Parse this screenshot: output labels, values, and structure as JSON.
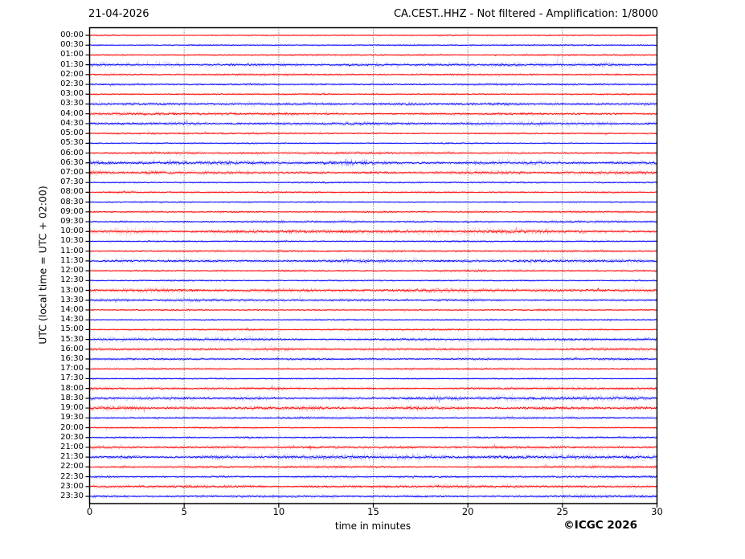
{
  "header": {
    "date": "21-04-2026",
    "title": "CA.CEST..HHZ - Not filtered - Amplification: 1/8000"
  },
  "footer": {
    "copyright": "©ICGC 2026"
  },
  "chart_data": {
    "type": "line",
    "subtype": "helicorder-seismogram",
    "title": "CA.CEST..HHZ - Not filtered - Amplification: 1/8000",
    "date": "21-04-2026",
    "station": "CA.CEST..HHZ",
    "filter": "Not filtered",
    "amplification": "1/8000",
    "xlabel": "time in minutes",
    "ylabel": "UTC (local time = UTC + 02:00)",
    "xlim": [
      0,
      30
    ],
    "x_ticks": [
      "0",
      "5",
      "10",
      "15",
      "20",
      "25",
      "30"
    ],
    "minutes_per_row": 30,
    "grid": "vertical dotted lines every 5 minutes",
    "legend": "none",
    "colors": {
      "red": "#ff0000",
      "blue": "#0000ff",
      "grid": "#555555",
      "frame": "#000000"
    },
    "rows": [
      {
        "time": "00:00",
        "color": "red",
        "amplitude": 0.8
      },
      {
        "time": "00:30",
        "color": "blue",
        "amplitude": 0.8
      },
      {
        "time": "01:00",
        "color": "red",
        "amplitude": 0.9
      },
      {
        "time": "01:30",
        "color": "blue",
        "amplitude": 1.6
      },
      {
        "time": "02:00",
        "color": "red",
        "amplitude": 1.0
      },
      {
        "time": "02:30",
        "color": "blue",
        "amplitude": 1.1
      },
      {
        "time": "03:00",
        "color": "red",
        "amplitude": 0.9
      },
      {
        "time": "03:30",
        "color": "blue",
        "amplitude": 1.5
      },
      {
        "time": "04:00",
        "color": "red",
        "amplitude": 1.5
      },
      {
        "time": "04:30",
        "color": "blue",
        "amplitude": 1.6
      },
      {
        "time": "05:00",
        "color": "red",
        "amplitude": 0.9
      },
      {
        "time": "05:30",
        "color": "blue",
        "amplitude": 0.8
      },
      {
        "time": "06:00",
        "color": "red",
        "amplitude": 1.2
      },
      {
        "time": "06:30",
        "color": "blue",
        "amplitude": 2.0
      },
      {
        "time": "07:00",
        "color": "red",
        "amplitude": 1.8
      },
      {
        "time": "07:30",
        "color": "blue",
        "amplitude": 0.9
      },
      {
        "time": "08:00",
        "color": "red",
        "amplitude": 1.0
      },
      {
        "time": "08:30",
        "color": "blue",
        "amplitude": 0.8
      },
      {
        "time": "09:00",
        "color": "red",
        "amplitude": 1.0
      },
      {
        "time": "09:30",
        "color": "blue",
        "amplitude": 1.2
      },
      {
        "time": "10:00",
        "color": "red",
        "amplitude": 2.0
      },
      {
        "time": "10:30",
        "color": "blue",
        "amplitude": 0.9
      },
      {
        "time": "11:00",
        "color": "red",
        "amplitude": 1.0
      },
      {
        "time": "11:30",
        "color": "blue",
        "amplitude": 1.8
      },
      {
        "time": "12:00",
        "color": "red",
        "amplitude": 1.0
      },
      {
        "time": "12:30",
        "color": "blue",
        "amplitude": 0.9
      },
      {
        "time": "13:00",
        "color": "red",
        "amplitude": 1.9
      },
      {
        "time": "13:30",
        "color": "blue",
        "amplitude": 1.4
      },
      {
        "time": "14:00",
        "color": "red",
        "amplitude": 1.0
      },
      {
        "time": "14:30",
        "color": "blue",
        "amplitude": 0.8
      },
      {
        "time": "15:00",
        "color": "red",
        "amplitude": 1.0
      },
      {
        "time": "15:30",
        "color": "blue",
        "amplitude": 1.7
      },
      {
        "time": "16:00",
        "color": "red",
        "amplitude": 1.4
      },
      {
        "time": "16:30",
        "color": "blue",
        "amplitude": 1.2
      },
      {
        "time": "17:00",
        "color": "red",
        "amplitude": 1.0
      },
      {
        "time": "17:30",
        "color": "blue",
        "amplitude": 0.9
      },
      {
        "time": "18:00",
        "color": "red",
        "amplitude": 1.3
      },
      {
        "time": "18:30",
        "color": "blue",
        "amplitude": 1.9
      },
      {
        "time": "19:00",
        "color": "red",
        "amplitude": 1.8
      },
      {
        "time": "19:30",
        "color": "blue",
        "amplitude": 1.2
      },
      {
        "time": "20:00",
        "color": "red",
        "amplitude": 0.9
      },
      {
        "time": "20:30",
        "color": "blue",
        "amplitude": 1.0
      },
      {
        "time": "21:00",
        "color": "red",
        "amplitude": 1.4
      },
      {
        "time": "21:30",
        "color": "blue",
        "amplitude": 2.0
      },
      {
        "time": "22:00",
        "color": "red",
        "amplitude": 1.2
      },
      {
        "time": "22:30",
        "color": "blue",
        "amplitude": 1.3
      },
      {
        "time": "23:00",
        "color": "red",
        "amplitude": 1.5
      },
      {
        "time": "23:30",
        "color": "blue",
        "amplitude": 1.3
      }
    ]
  }
}
